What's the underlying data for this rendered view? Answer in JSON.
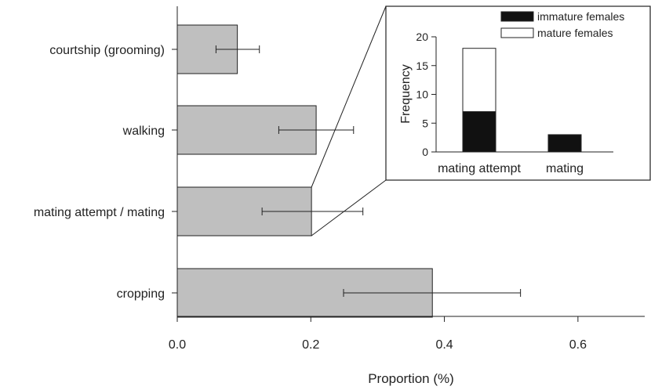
{
  "chart_data": [
    {
      "type": "bar",
      "orientation": "horizontal",
      "categories": [
        "courtship (grooming)",
        "walking",
        "mating attempt / mating",
        "cropping"
      ],
      "values": [
        0.09,
        0.208,
        0.201,
        0.382
      ],
      "error_low": [
        0.058,
        0.152,
        0.127,
        0.249
      ],
      "error_high": [
        0.123,
        0.264,
        0.278,
        0.514
      ],
      "xlabel": "Proportion (%)",
      "xlim": [
        0.0,
        0.7
      ],
      "xticks": [
        "0.0",
        "0.2",
        "0.4",
        "0.6"
      ],
      "bar_color": "#bfbfbf",
      "grid": false
    },
    {
      "type": "bar",
      "stacked": true,
      "categories": [
        "mating attempt",
        "mating"
      ],
      "series": [
        {
          "name": "immature females",
          "values": [
            7,
            3
          ],
          "color": "#111111"
        },
        {
          "name": "mature females",
          "values": [
            11,
            0
          ],
          "color": "#ffffff"
        }
      ],
      "ylabel": "Frequency",
      "ylim": [
        0,
        20
      ],
      "yticks": [
        "0",
        "5",
        "10",
        "15",
        "20"
      ],
      "legend": "top-right",
      "grid": false
    }
  ]
}
